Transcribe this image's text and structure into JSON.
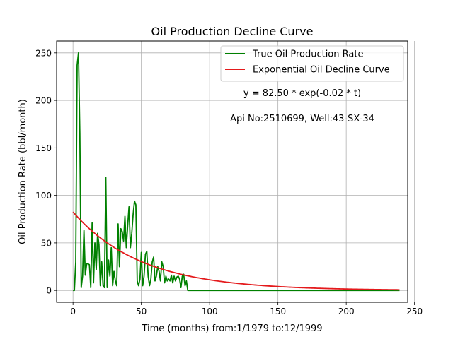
{
  "chart_data": {
    "type": "line",
    "title": "Oil Production Decline Curve",
    "xlabel": "Time (months) from:1/1979 to:12/1999",
    "ylabel": "Oil Production Rate (bbl/month)",
    "xlim": [
      -12,
      245
    ],
    "ylim": [
      -12.5,
      262.5
    ],
    "xticks": [
      0,
      50,
      100,
      150,
      200,
      250
    ],
    "yticks": [
      0,
      50,
      100,
      150,
      200,
      250
    ],
    "grid": true,
    "legend_position": "top-right",
    "annotations": [
      "y = 82.50 * exp(-0.02 * t)",
      "Api No:2510699, Well:43-SX-34"
    ],
    "series": [
      {
        "name": "True Oil Production Rate",
        "color": "#008000",
        "kind": "points",
        "x": [
          0,
          1,
          2,
          3,
          4,
          5,
          6,
          7,
          8,
          9,
          10,
          11,
          12,
          13,
          14,
          15,
          16,
          17,
          18,
          19,
          20,
          21,
          22,
          23,
          24,
          25,
          26,
          27,
          28,
          29,
          30,
          31,
          32,
          33,
          34,
          35,
          36,
          37,
          38,
          39,
          40,
          41,
          42,
          43,
          44,
          45,
          46,
          47,
          48,
          49,
          50,
          51,
          52,
          53,
          54,
          55,
          56,
          57,
          58,
          59,
          60,
          61,
          62,
          63,
          64,
          65,
          66,
          67,
          68,
          69,
          70,
          71,
          72,
          73,
          74,
          75,
          76,
          77,
          78,
          79,
          80,
          81,
          82,
          83,
          84,
          85,
          86,
          87,
          88,
          239
        ],
        "y": [
          0,
          0,
          30,
          237,
          250,
          165,
          3,
          15,
          63,
          16,
          28,
          28,
          27,
          3,
          71,
          8,
          50,
          22,
          60,
          48,
          5,
          30,
          5,
          3,
          119,
          3,
          32,
          15,
          45,
          5,
          20,
          10,
          5,
          70,
          25,
          65,
          62,
          52,
          78,
          45,
          68,
          88,
          45,
          60,
          80,
          94,
          90,
          10,
          5,
          12,
          40,
          5,
          15,
          38,
          41,
          15,
          5,
          12,
          30,
          35,
          10,
          15,
          25,
          20,
          10,
          30,
          25,
          8,
          15,
          10,
          12,
          10,
          16,
          8,
          15,
          10,
          14,
          15,
          12,
          3,
          15,
          17,
          5,
          10,
          0,
          0,
          0,
          0,
          0,
          0
        ]
      },
      {
        "name": "Exponential Oil Decline Curve",
        "color": "#e41a1c",
        "kind": "exponential",
        "a": 82.5,
        "b": 0.02,
        "x_start": 0,
        "x_end": 239
      }
    ]
  }
}
